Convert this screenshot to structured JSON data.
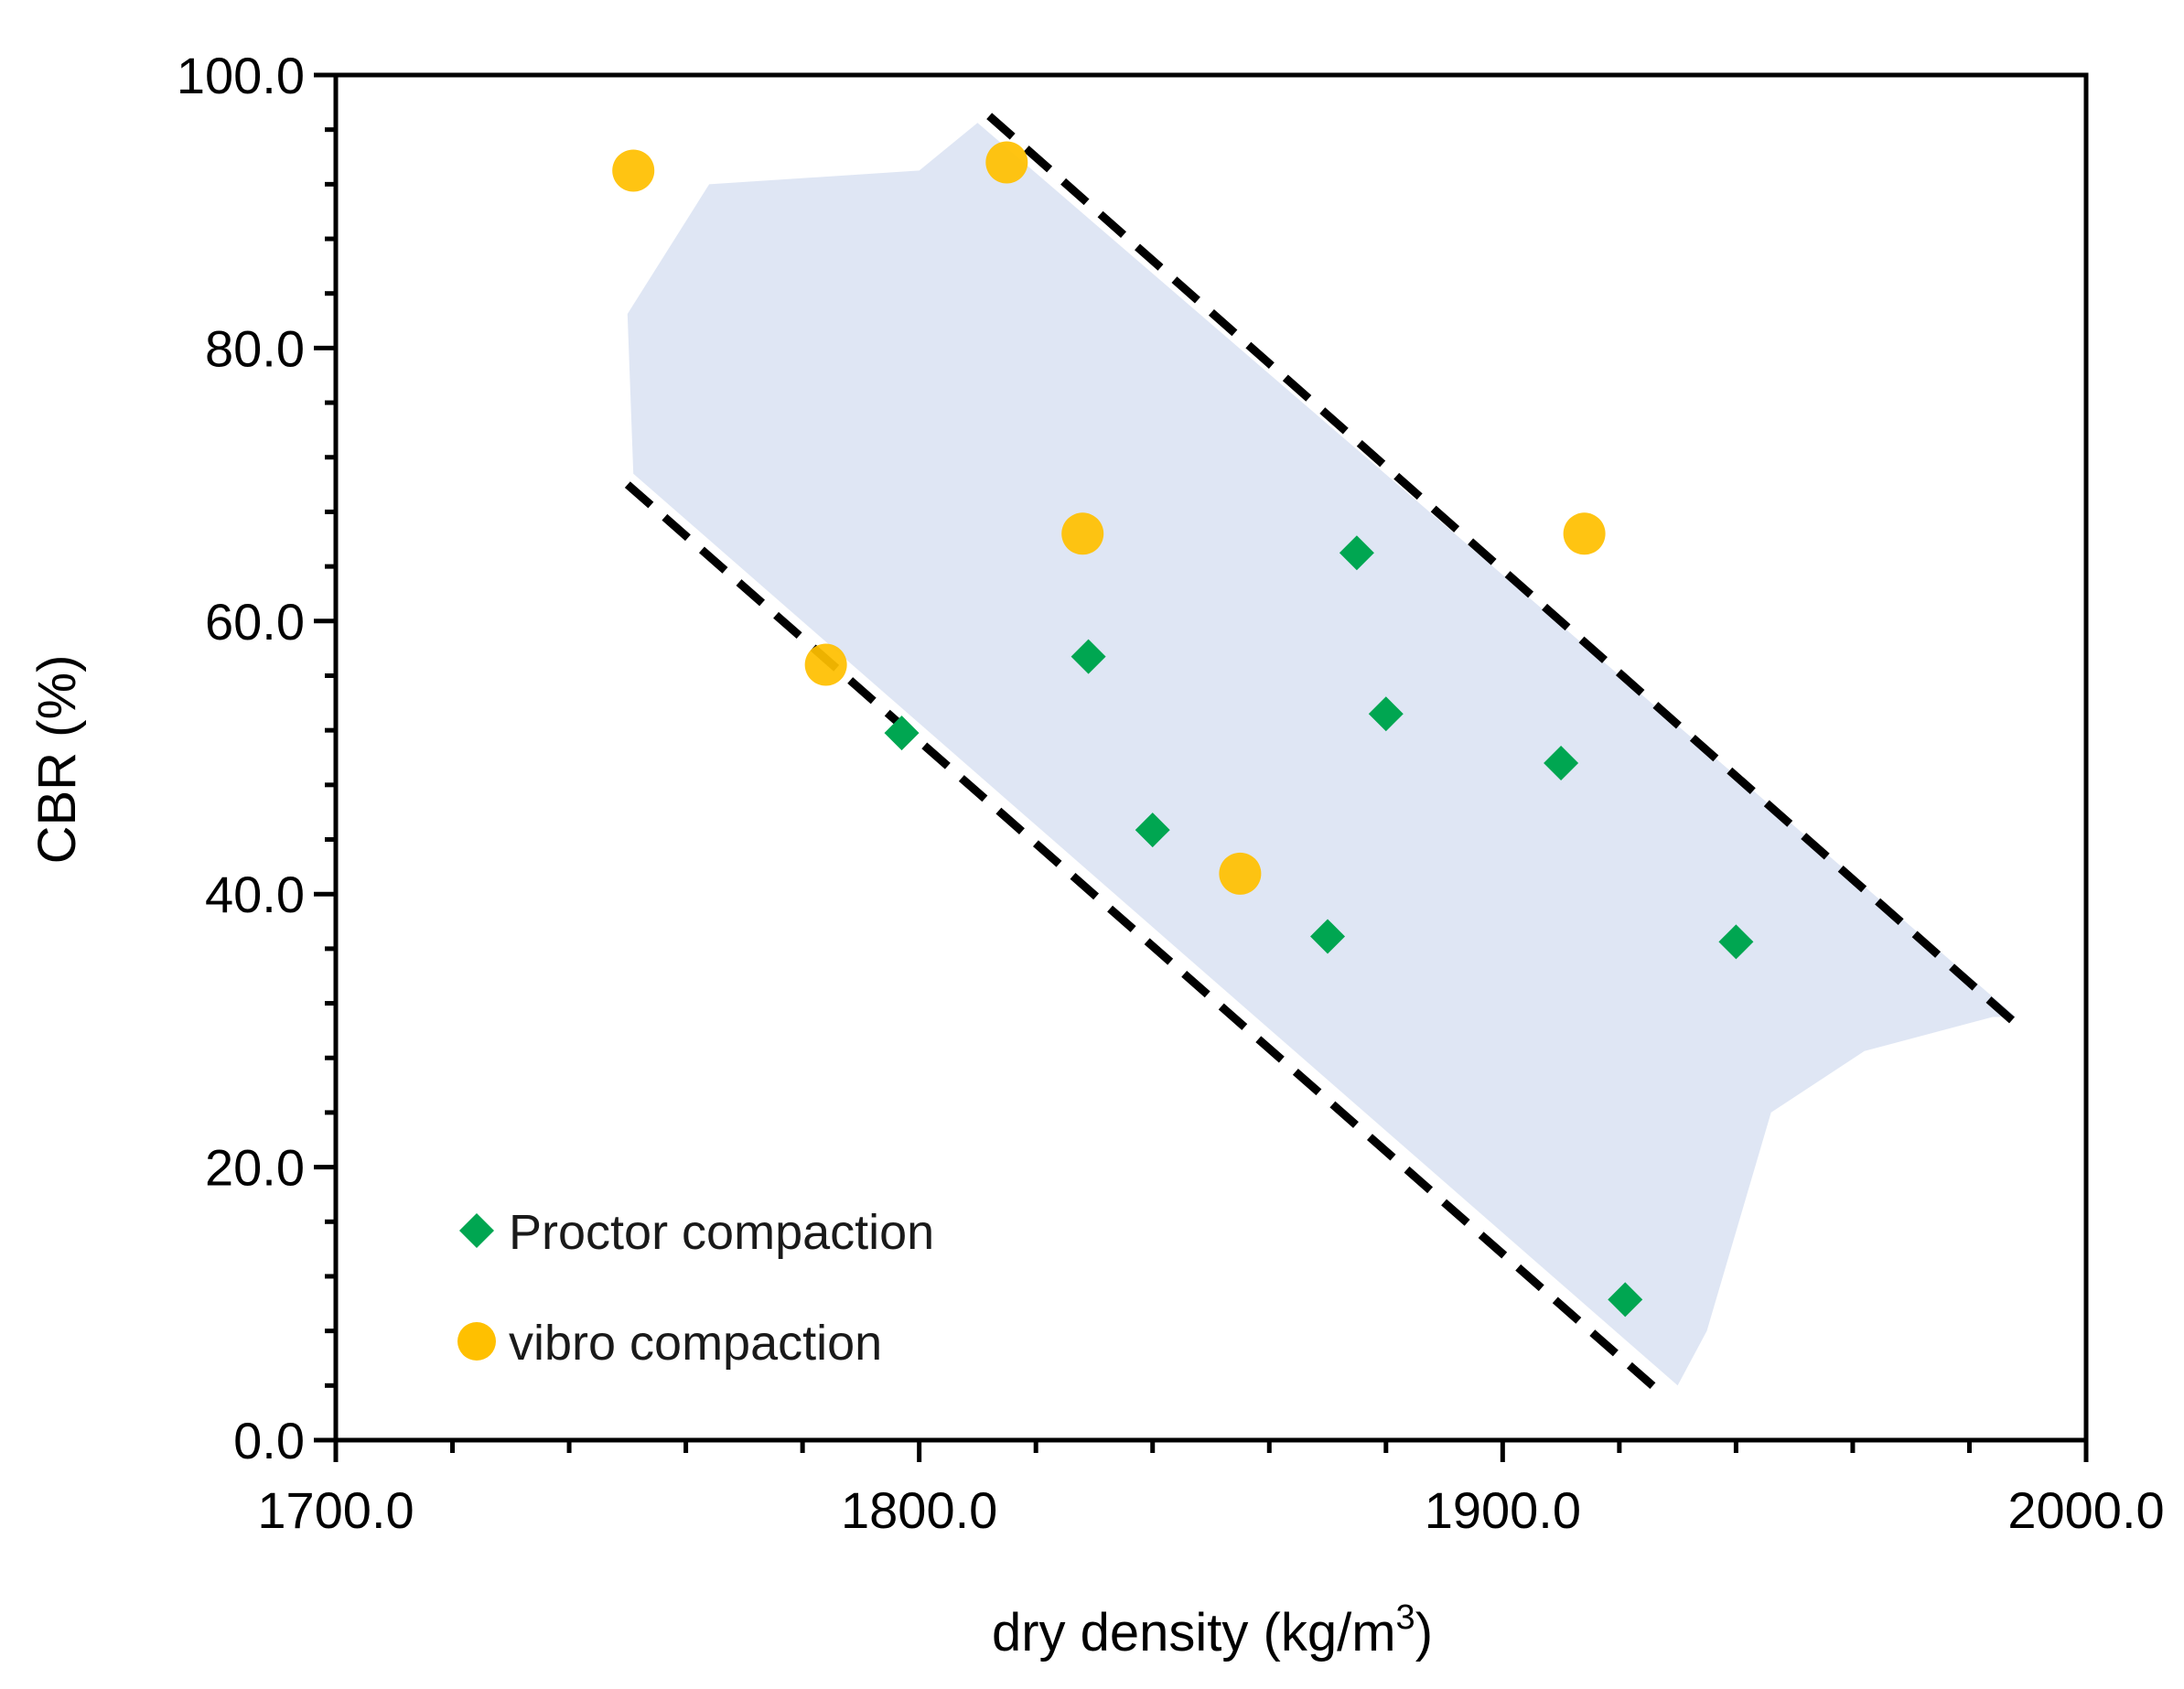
{
  "chart_data": {
    "type": "scatter",
    "title": "",
    "xlabel": "dry density (kg/m",
    "xlabel_superscript": "3",
    "xlabel_suffix": ")",
    "ylabel": "CBR (%)",
    "xlim": [
      1700,
      2000
    ],
    "ylim": [
      0,
      100
    ],
    "x_ticks": [
      1700,
      1800,
      1900,
      2000
    ],
    "x_tick_labels": [
      "1700.0",
      "1800.0",
      "1900.0",
      "2000.0"
    ],
    "x_minor_step": 20,
    "y_ticks": [
      0,
      20,
      40,
      60,
      80,
      100
    ],
    "y_tick_labels": [
      "0.0",
      "20.0",
      "40.0",
      "60.0",
      "80.0",
      "100.0"
    ],
    "y_minor_step": 4,
    "series": [
      {
        "name": "Proctor compaction",
        "marker": "diamond",
        "color": "#00A651",
        "points": [
          {
            "x": 1797,
            "y": 51.8
          },
          {
            "x": 1829,
            "y": 57.4
          },
          {
            "x": 1840,
            "y": 44.7
          },
          {
            "x": 1870,
            "y": 36.9
          },
          {
            "x": 1875,
            "y": 65.0
          },
          {
            "x": 1880,
            "y": 53.2
          },
          {
            "x": 1910,
            "y": 49.6
          },
          {
            "x": 1921,
            "y": 10.3
          },
          {
            "x": 1940,
            "y": 36.5
          }
        ]
      },
      {
        "name": "vibro compaction",
        "marker": "circle",
        "color": "#FFC000",
        "points": [
          {
            "x": 1751,
            "y": 93.0
          },
          {
            "x": 1784,
            "y": 56.8
          },
          {
            "x": 1815,
            "y": 93.6
          },
          {
            "x": 1828,
            "y": 66.4
          },
          {
            "x": 1855,
            "y": 41.5
          },
          {
            "x": 1914,
            "y": 66.4
          }
        ]
      }
    ],
    "bound_lines": [
      {
        "name": "upper bound",
        "style": "dashed",
        "color": "#000000",
        "points": [
          {
            "x": 1812,
            "y": 97.0
          },
          {
            "x": 1988,
            "y": 30.5
          }
        ]
      },
      {
        "name": "lower bound",
        "style": "dashed",
        "color": "#000000",
        "points": [
          {
            "x": 1750,
            "y": 70.0
          },
          {
            "x": 1927,
            "y": 3.5
          }
        ]
      }
    ],
    "shaded_region": {
      "color": "#C9D5EC",
      "opacity": 0.6,
      "polygon": [
        {
          "x": 1750,
          "y": 82.5
        },
        {
          "x": 1764,
          "y": 92.0
        },
        {
          "x": 1800,
          "y": 93.0
        },
        {
          "x": 1810,
          "y": 96.5
        },
        {
          "x": 1988,
          "y": 31.0
        },
        {
          "x": 1984,
          "y": 31.0
        },
        {
          "x": 1962,
          "y": 28.5
        },
        {
          "x": 1946,
          "y": 24.0
        },
        {
          "x": 1935,
          "y": 8.0
        },
        {
          "x": 1930,
          "y": 4.0
        },
        {
          "x": 1751,
          "y": 70.8
        }
      ]
    },
    "legend": {
      "position": "bottom-left",
      "entries": [
        "Proctor compaction",
        "vibro compaction"
      ]
    },
    "grid": false
  }
}
